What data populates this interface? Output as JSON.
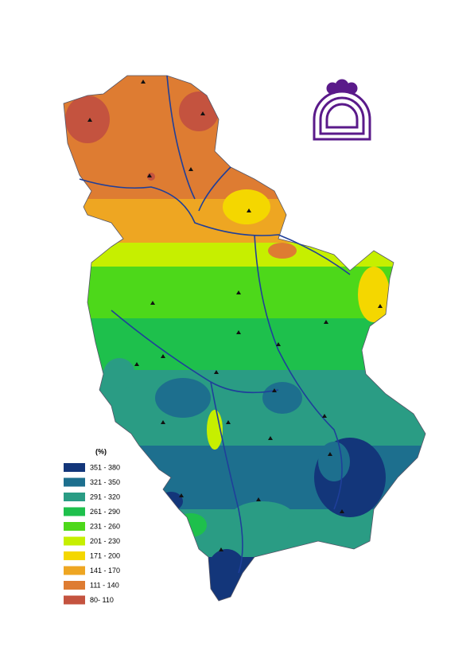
{
  "legend": {
    "title": "(%)",
    "items": [
      {
        "label": "351 - 380",
        "color": "#13367a"
      },
      {
        "label": "321 - 350",
        "color": "#1d6f8e"
      },
      {
        "label": "291 - 320",
        "color": "#2a9c84"
      },
      {
        "label": "261 - 290",
        "color": "#1ec04c"
      },
      {
        "label": "231 - 260",
        "color": "#4dd81a"
      },
      {
        "label": "201 - 230",
        "color": "#c6ef00"
      },
      {
        "label": "171 - 200",
        "color": "#f4d700"
      },
      {
        "label": "141 - 170",
        "color": "#eea622"
      },
      {
        "label": "111 - 140",
        "color": "#de7c32"
      },
      {
        "label": "80- 110",
        "color": "#c4533f"
      }
    ]
  }
}
